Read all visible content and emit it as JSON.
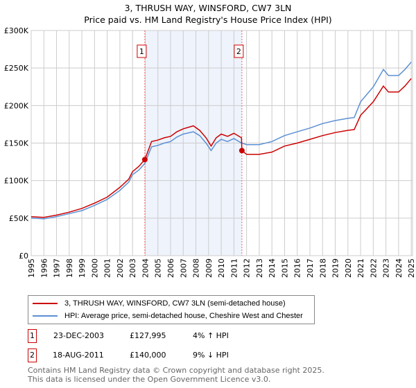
{
  "chart_data": {
    "type": "line",
    "title": "3, THRUSH WAY, WINSFORD, CW7 3LN",
    "subtitle": "Price paid vs. HM Land Registry's House Price Index (HPI)",
    "xlim": [
      1995,
      2025.1
    ],
    "ylim": [
      0,
      300000
    ],
    "y_ticks": [
      0,
      50000,
      100000,
      150000,
      200000,
      250000,
      300000
    ],
    "y_tick_labels": [
      "£0",
      "£50K",
      "£100K",
      "£150K",
      "£200K",
      "£250K",
      "£300K"
    ],
    "x_tick_labels": [
      "1995",
      "1996",
      "1997",
      "1998",
      "1999",
      "2000",
      "2001",
      "2002",
      "2003",
      "2004",
      "2005",
      "2006",
      "2007",
      "2008",
      "2009",
      "2010",
      "2011",
      "2012",
      "2013",
      "2014",
      "2015",
      "2016",
      "2017",
      "2018",
      "2019",
      "2020",
      "2021",
      "2022",
      "2023",
      "2024",
      "2025"
    ],
    "grid": true,
    "x": [
      1995,
      1996,
      1997,
      1998,
      1999,
      2000,
      2001,
      2002,
      2002.7,
      2003,
      2003.5,
      2003.97,
      2004.5,
      2005,
      2005.5,
      2006,
      2006.5,
      2007,
      2007.8,
      2008.3,
      2008.8,
      2009.2,
      2009.6,
      2010,
      2010.5,
      2011,
      2011.6,
      2011.63,
      2012,
      2013,
      2014,
      2015,
      2016,
      2017,
      2018,
      2019,
      2020,
      2020.5,
      2021,
      2022,
      2022.8,
      2023.2,
      2024,
      2024.5,
      2025
    ],
    "series": [
      {
        "name": "3, THRUSH WAY, WINSFORD, CW7 3LN (semi-detached house)",
        "color": "#cc0000",
        "values": [
          52,
          51,
          54,
          58,
          63,
          70,
          78,
          91,
          102,
          112,
          119,
          128,
          152,
          154,
          157,
          159,
          165,
          169,
          173,
          167,
          157,
          146,
          157,
          162,
          159,
          163,
          157,
          140,
          135,
          135,
          138,
          146,
          150,
          155,
          160,
          164,
          167,
          168,
          187,
          205,
          226,
          218,
          218,
          226,
          236
        ]
      },
      {
        "name": "HPI: Average price, semi-detached house, Cheshire West and Chester",
        "color": "#5b8fd4",
        "values": [
          50,
          49,
          52,
          56,
          60,
          67,
          75,
          87,
          98,
          108,
          114,
          123,
          145,
          147,
          150,
          152,
          158,
          162,
          165,
          160,
          150,
          140,
          150,
          155,
          152,
          156,
          150,
          150,
          148,
          148,
          152,
          160,
          165,
          170,
          176,
          180,
          183,
          184,
          205,
          225,
          248,
          240,
          240,
          248,
          258
        ]
      }
    ],
    "value_unit_multiplier": 1000,
    "sales": [
      {
        "label": "1",
        "year": 2003.97,
        "date": "23-DEC-2003",
        "price": "£127,995",
        "price_value": 127995,
        "hpi": "4% ↑ HPI"
      },
      {
        "label": "2",
        "year": 2011.63,
        "date": "18-AUG-2011",
        "price": "£140,000",
        "price_value": 140000,
        "hpi": "9% ↓ HPI"
      }
    ],
    "shade_color": "#eef3fc"
  },
  "footer": {
    "line1": "Contains HM Land Registry data © Crown copyright and database right 2025.",
    "line2": "This data is licensed under the Open Government Licence v3.0."
  }
}
